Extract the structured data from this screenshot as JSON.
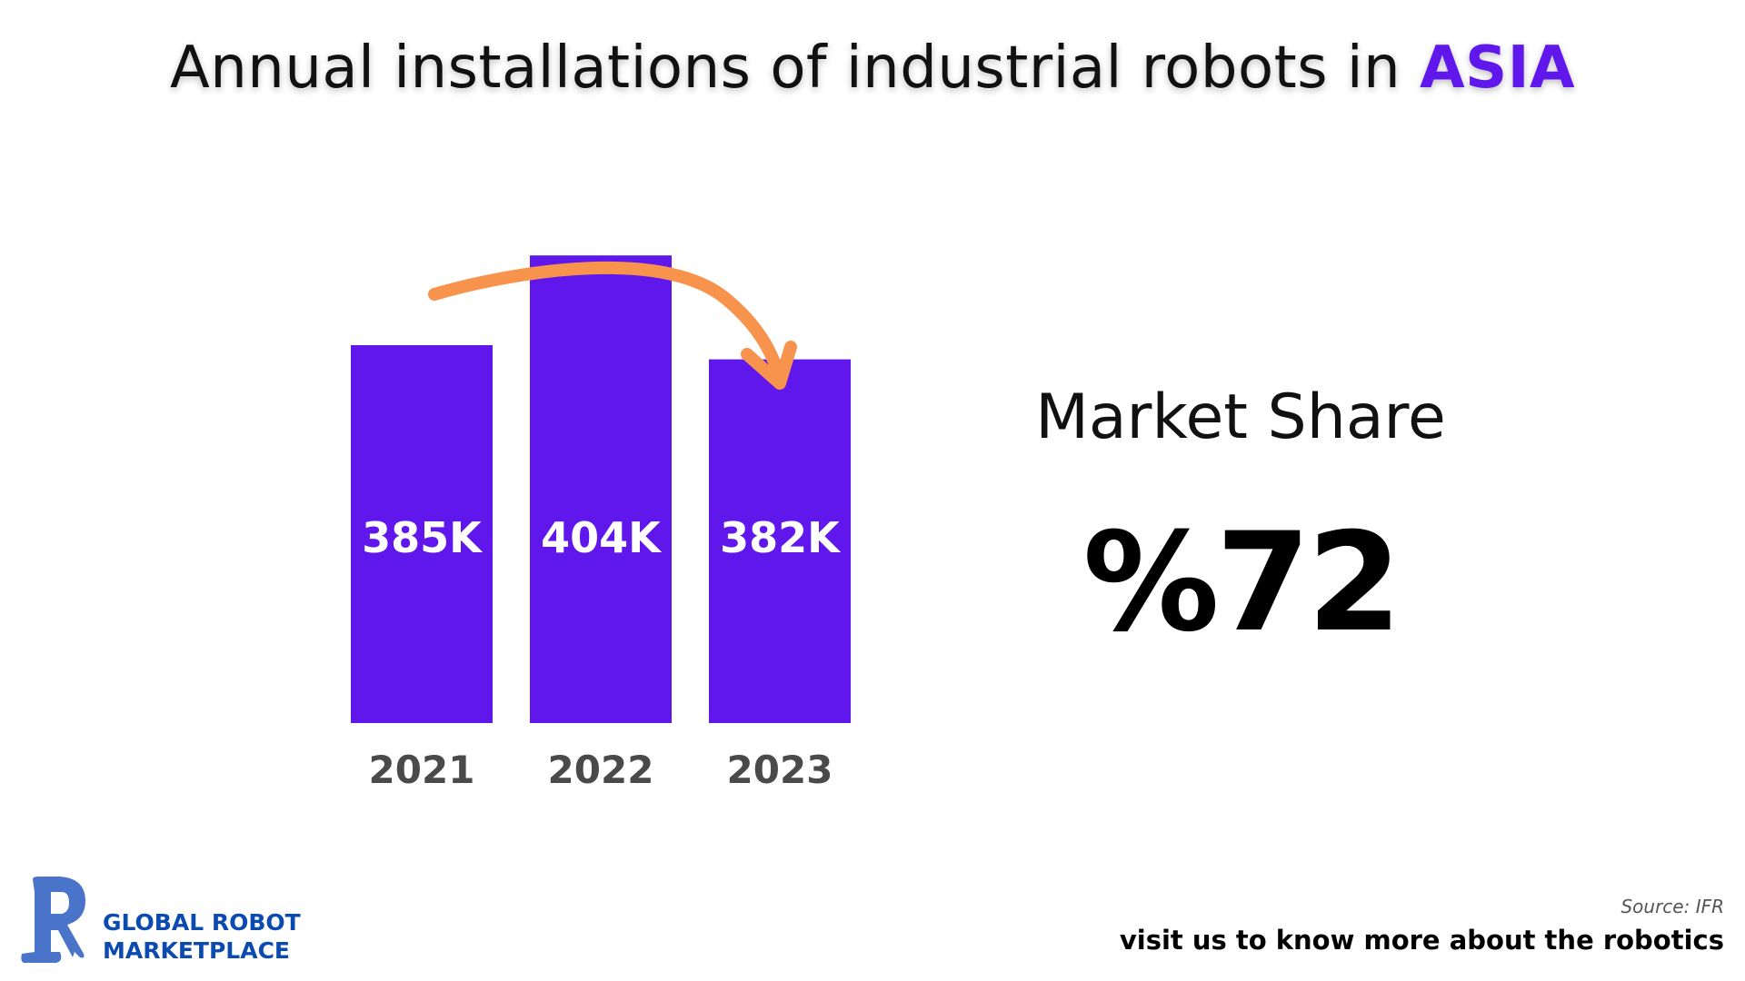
{
  "chart_data": {
    "type": "bar",
    "title": "Annual installations of industrial robots in ASIA",
    "title_prefix": "Annual installations of industrial robots in",
    "title_accent": "ASIA",
    "categories": [
      "2021",
      "2022",
      "2023"
    ],
    "values": [
      385,
      404,
      382
    ],
    "value_labels": [
      "385K",
      "404K",
      "382K"
    ],
    "unit": "thousand units",
    "ylim": [
      305,
      405
    ],
    "xlabel": "",
    "ylabel": "",
    "grid": false,
    "annotation": "arrow from 2021 over 2022 pointing down to 2023"
  },
  "colors": {
    "bar": "#5f17ec",
    "accent": "#5f17ec",
    "arrow": "#f7934c",
    "logo": "#4a74c9",
    "logo_text": "#0b4bb0"
  },
  "market_share": {
    "label": "Market Share",
    "value": "%72"
  },
  "footer": {
    "source": "Source: IFR",
    "cta": "visit us to know more about the robotics"
  },
  "logo": {
    "line1": "GLOBAL ROBOT",
    "line2": "MARKETPLACE"
  }
}
